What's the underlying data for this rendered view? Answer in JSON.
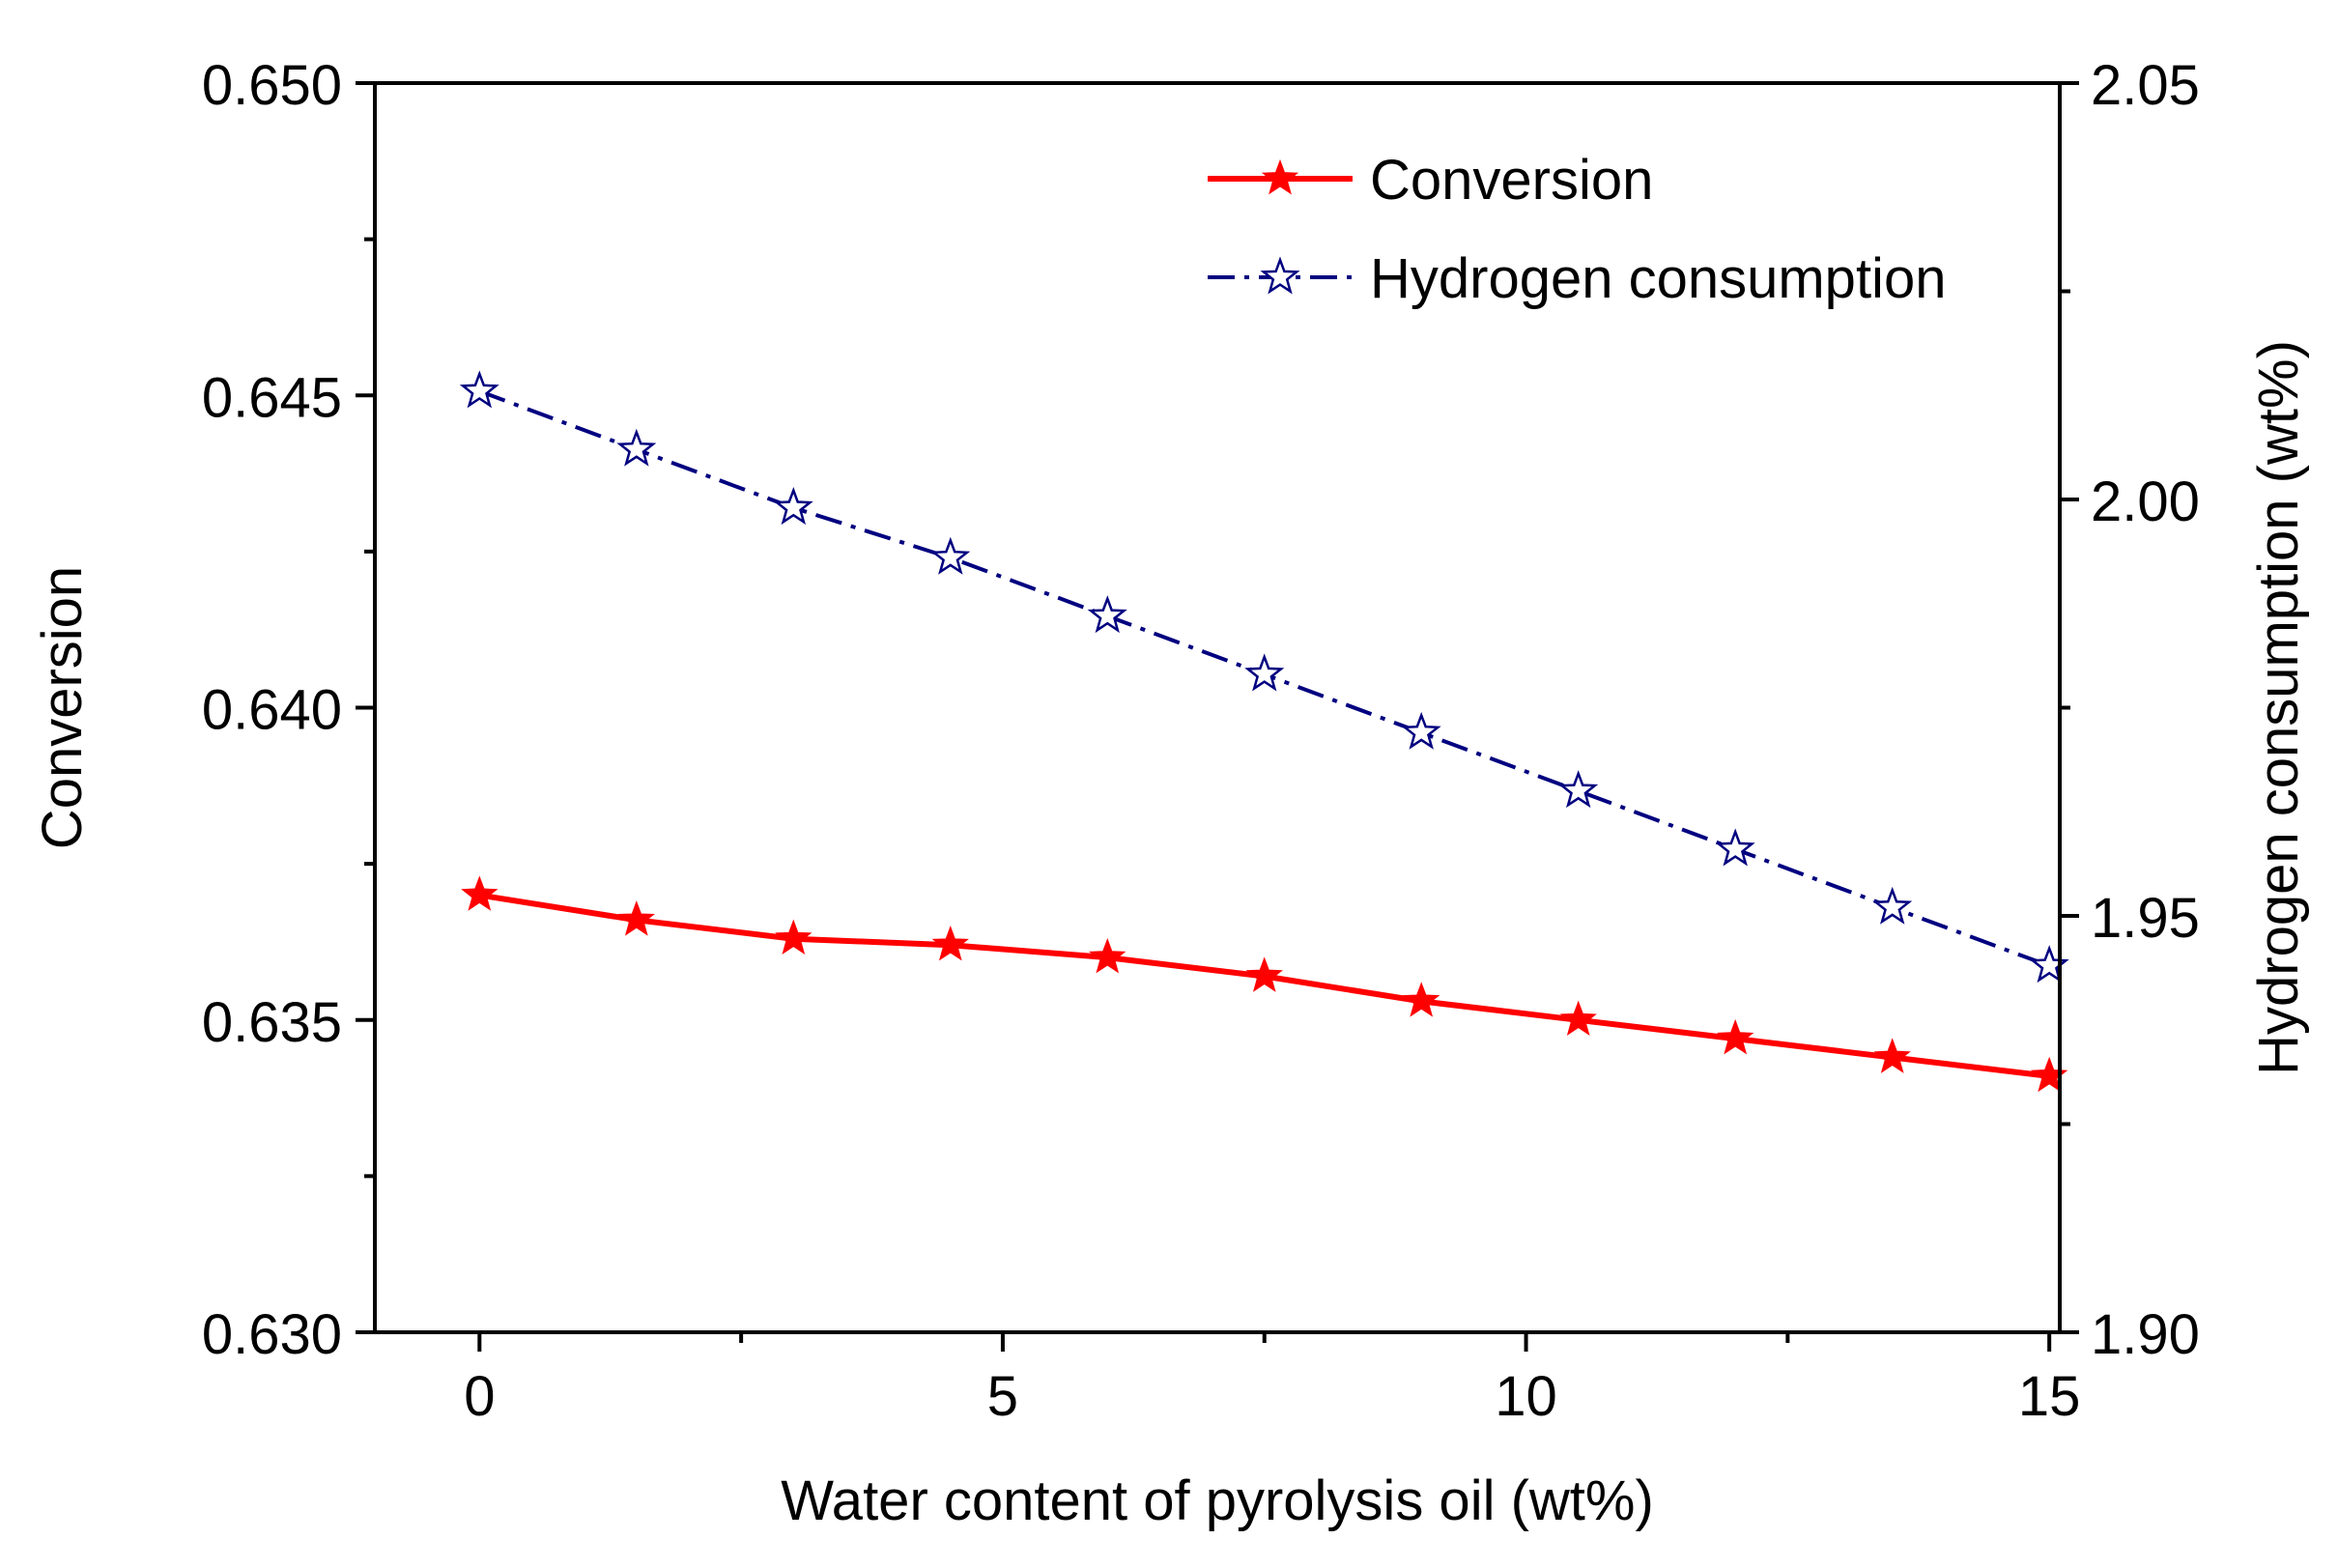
{
  "chart_data": {
    "type": "line",
    "title": "",
    "xlabel": "Water content of pyrolysis oil (wt%)",
    "ylabel": "Conversion",
    "y2label": "Hydrogen consumption (wt%)",
    "xlim": [
      -1,
      15.1
    ],
    "ylim": [
      0.63,
      0.65
    ],
    "y2lim": [
      1.9,
      2.05
    ],
    "grid": false,
    "legend_position": "top-right",
    "x_ticks": [
      0,
      5,
      10,
      15
    ],
    "x_tick_labels": [
      "0",
      "5",
      "10",
      "15"
    ],
    "y_ticks": [
      0.63,
      0.635,
      0.64,
      0.645,
      0.65
    ],
    "y_tick_labels": [
      "0.630",
      "0.635",
      "0.640",
      "0.645",
      "0.650"
    ],
    "y2_ticks": [
      1.9,
      1.95,
      2.0,
      2.05
    ],
    "y2_tick_labels": [
      "1.90",
      "1.95",
      "2.00",
      "2.05"
    ],
    "x": [
      0,
      1.5,
      3,
      4.5,
      6,
      7.5,
      9,
      10.5,
      12,
      13.5,
      15
    ],
    "series": [
      {
        "name": "Conversion",
        "axis": "left",
        "color": "#ff0000",
        "line_style": "solid",
        "marker": "filled-star",
        "values": [
          0.637,
          0.6366,
          0.6363,
          0.6362,
          0.636,
          0.6357,
          0.6353,
          0.635,
          0.6347,
          0.6344,
          0.6341
        ]
      },
      {
        "name": "Hydrogen consumption",
        "axis": "right",
        "color": "#000080",
        "line_style": "dash-dot",
        "marker": "open-star",
        "values": [
          2.013,
          2.006,
          1.999,
          1.993,
          1.986,
          1.979,
          1.972,
          1.965,
          1.958,
          1.951,
          1.944
        ]
      }
    ]
  }
}
